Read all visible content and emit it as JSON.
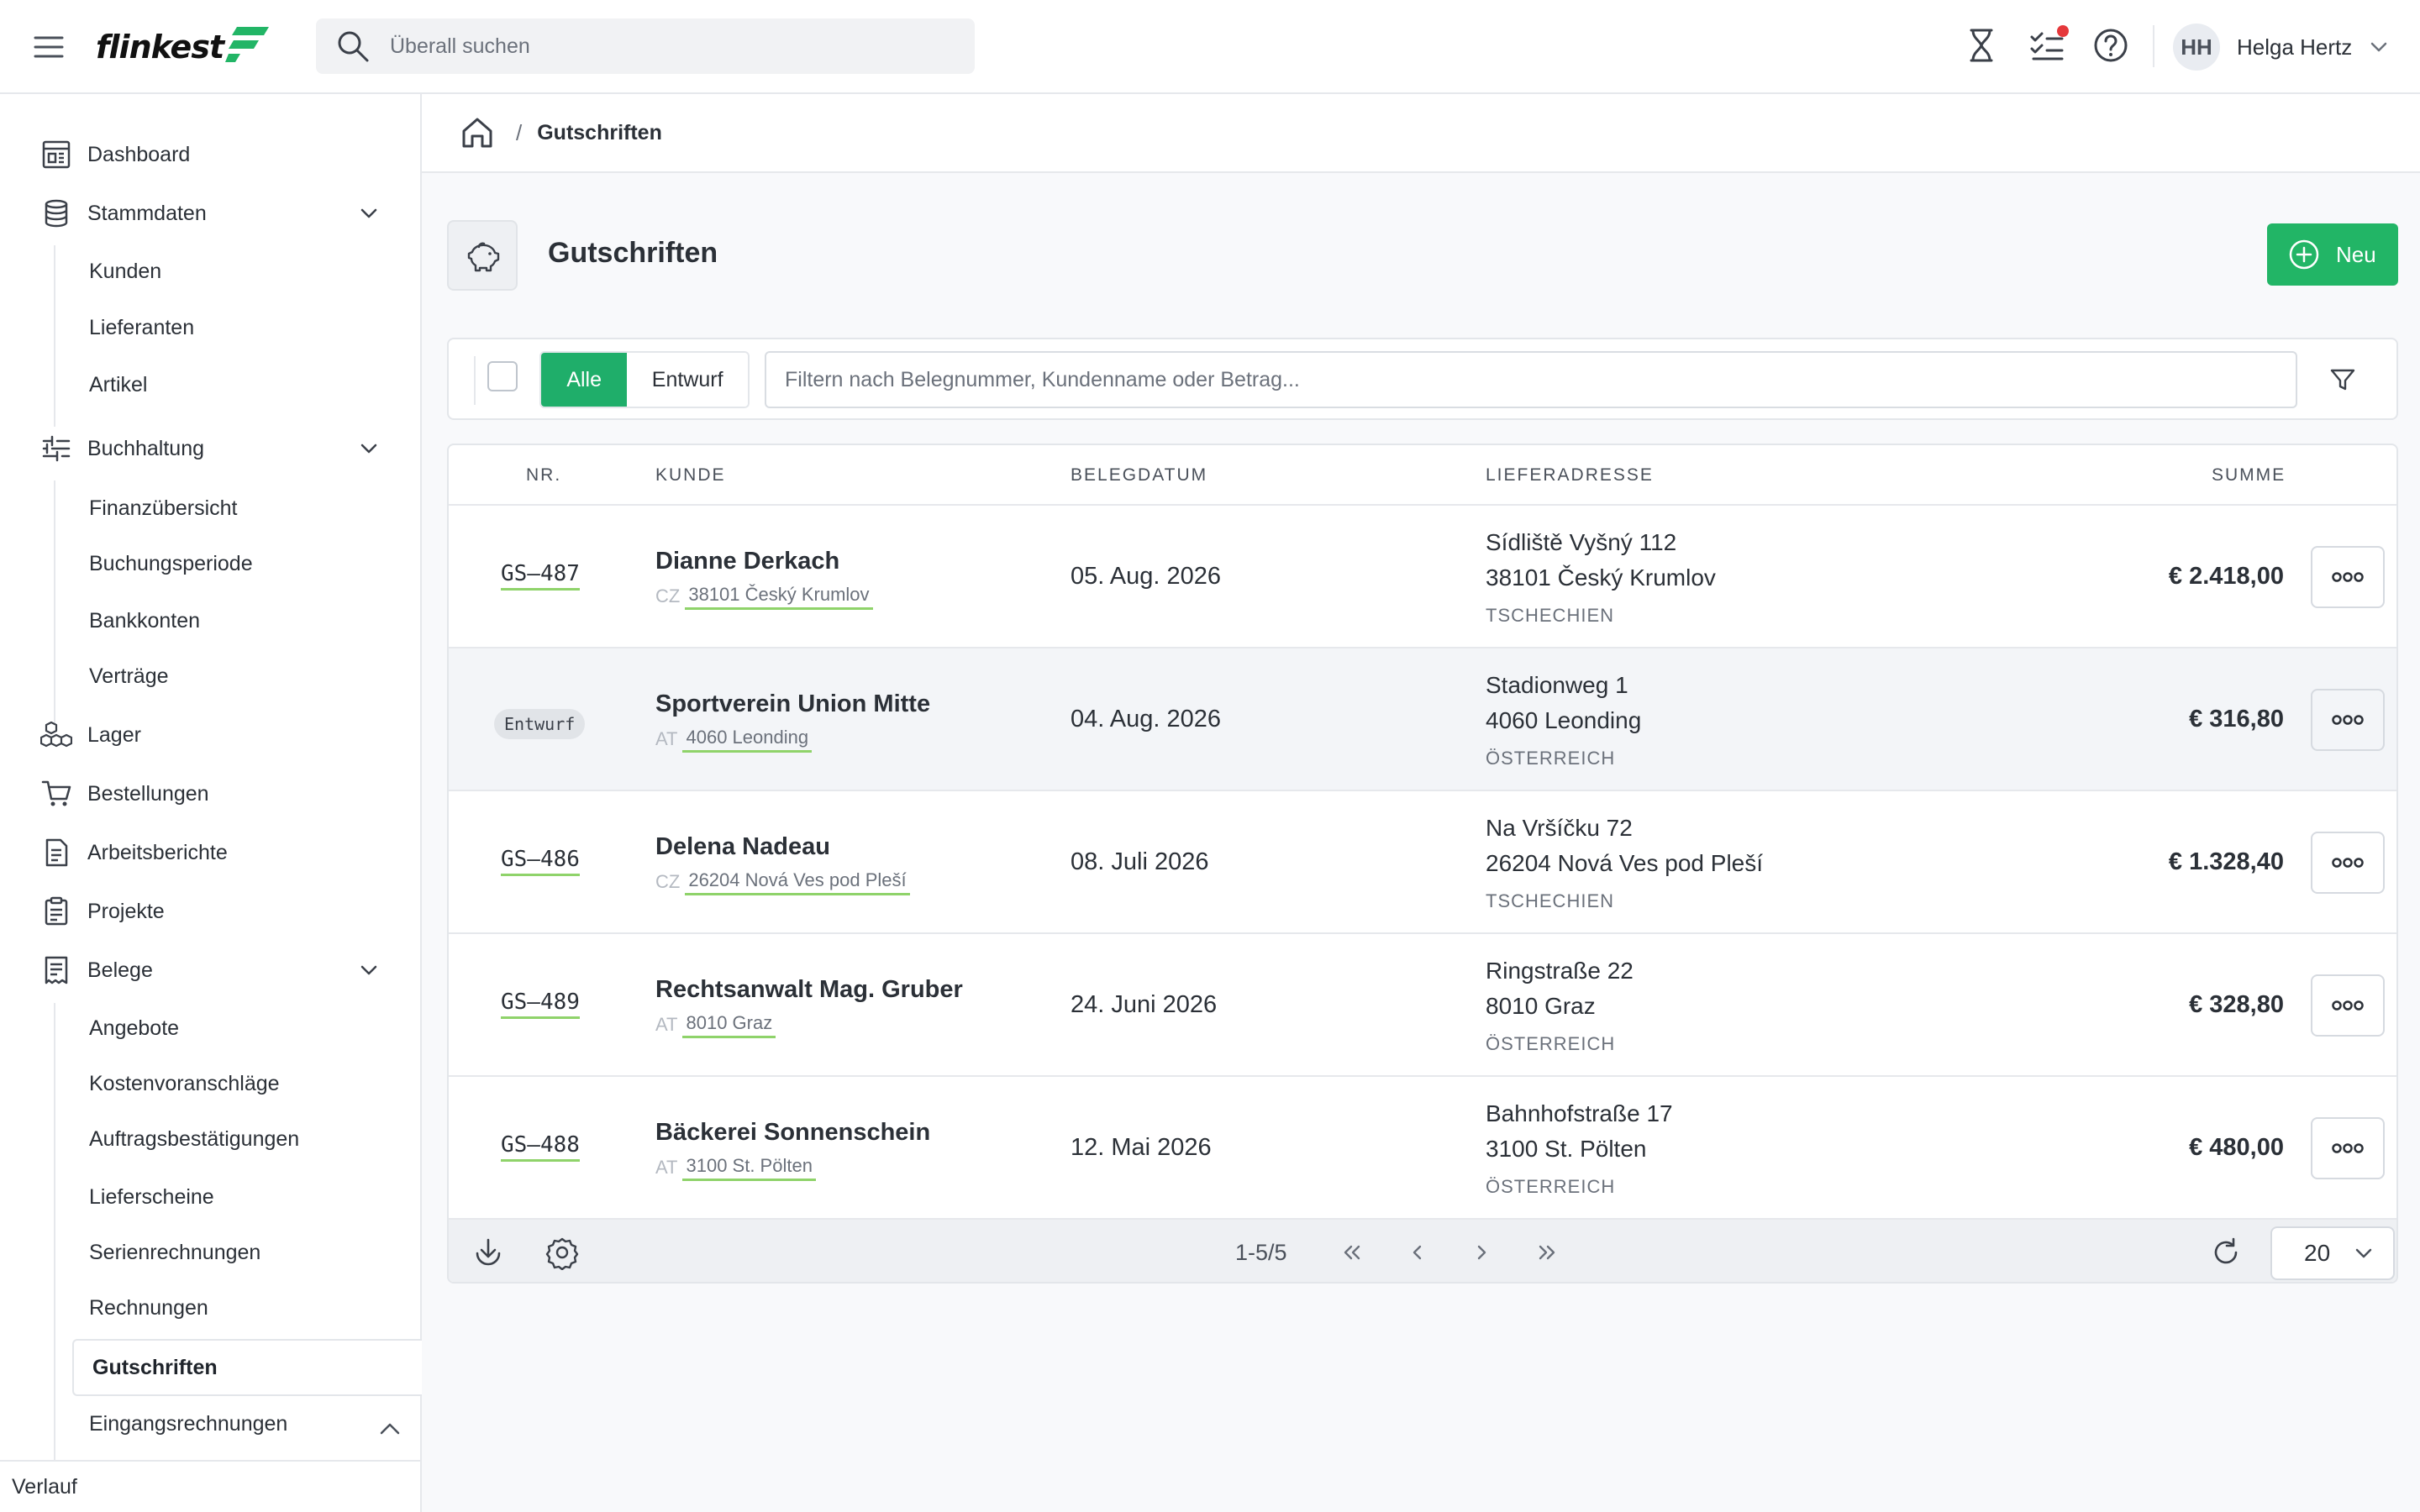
{
  "app": {
    "logo_text": "flinkest",
    "brand_color": "#22b566",
    "search_placeholder": "Überall suchen"
  },
  "user": {
    "initials": "HH",
    "name": "Helga Hertz"
  },
  "sidebar": {
    "items": [
      {
        "label": "Dashboard",
        "icon": "dashboard-icon"
      },
      {
        "label": "Stammdaten",
        "icon": "database-icon"
      },
      {
        "label": "Buchhaltung",
        "icon": "sliders-icon"
      },
      {
        "label": "Lager",
        "icon": "boxes-icon"
      },
      {
        "label": "Bestellungen",
        "icon": "cart-icon"
      },
      {
        "label": "Arbeitsberichte",
        "icon": "report-icon"
      },
      {
        "label": "Projekte",
        "icon": "clipboard-icon"
      },
      {
        "label": "Belege",
        "icon": "document-icon"
      }
    ],
    "stammdaten_sub": [
      "Kunden",
      "Lieferanten",
      "Artikel"
    ],
    "buchhaltung_sub": [
      "Finanzübersicht",
      "Buchungsperiode",
      "Bankkonten",
      "Verträge"
    ],
    "belege_sub": [
      "Angebote",
      "Kostenvoranschläge",
      "Auftragsbestätigungen",
      "Lieferscheine",
      "Serienrechnungen",
      "Rechnungen",
      "Gutschriften",
      "Eingangsrechnungen"
    ],
    "active_item": "Gutschriften",
    "history_label": "Verlauf"
  },
  "breadcrumb": {
    "separator": "/",
    "current": "Gutschriften"
  },
  "page": {
    "title": "Gutschriften",
    "new_button": "Neu"
  },
  "filters": {
    "tabs": [
      "Alle",
      "Entwurf"
    ],
    "active_tab": "Alle",
    "search_placeholder": "Filtern nach Belegnummer, Kundenname oder Betrag..."
  },
  "table": {
    "columns": [
      "NR.",
      "KUNDE",
      "BELEGDATUM",
      "LIEFERADRESSE",
      "SUMME"
    ],
    "rows": [
      {
        "nr": "GS–487",
        "draft": false,
        "customer": "Dianne Derkach",
        "country": "CZ",
        "location": "38101 Český Krumlov",
        "date": "05. Aug. 2026",
        "address1": "Sídliště Vyšný 112",
        "address2": "38101 Český Krumlov",
        "address_country": "TSCHECHIEN",
        "sum": "€ 2.418,00"
      },
      {
        "nr": "Entwurf",
        "draft": true,
        "customer": "Sportverein Union Mitte",
        "country": "AT",
        "location": "4060 Leonding",
        "date": "04. Aug. 2026",
        "address1": "Stadionweg 1",
        "address2": "4060 Leonding",
        "address_country": "ÖSTERREICH",
        "sum": "€ 316,80"
      },
      {
        "nr": "GS–486",
        "draft": false,
        "customer": "Delena Nadeau",
        "country": "CZ",
        "location": "26204 Nová Ves pod Pleší",
        "date": "08. Juli 2026",
        "address1": "Na Vršíčku 72",
        "address2": "26204 Nová Ves pod Pleší",
        "address_country": "TSCHECHIEN",
        "sum": "€ 1.328,40"
      },
      {
        "nr": "GS–489",
        "draft": false,
        "customer": "Rechtsanwalt Mag. Gruber",
        "country": "AT",
        "location": "8010 Graz",
        "date": "24. Juni 2026",
        "address1": "Ringstraße 22",
        "address2": "8010 Graz",
        "address_country": "ÖSTERREICH",
        "sum": "€ 328,80"
      },
      {
        "nr": "GS–488",
        "draft": false,
        "customer": "Bäckerei Sonnenschein",
        "country": "AT",
        "location": "3100 St. Pölten",
        "date": "12. Mai 2026",
        "address1": "Bahnhofstraße 17",
        "address2": "3100 St. Pölten",
        "address_country": "ÖSTERREICH",
        "sum": "€ 480,00"
      }
    ]
  },
  "pagination": {
    "info": "1-5/5",
    "per_page": "20"
  }
}
